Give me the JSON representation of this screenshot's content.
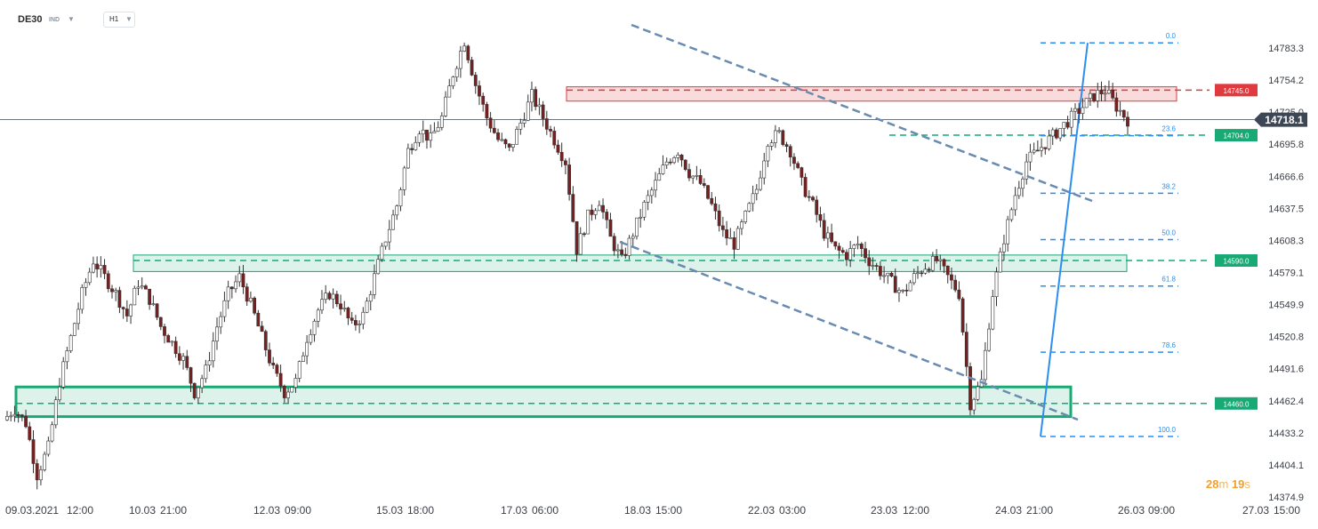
{
  "header": {
    "symbol": "DE30",
    "symbol_type": "IND",
    "timeframe": "H1"
  },
  "timer": {
    "minutes": "28",
    "m_unit": "m",
    "seconds": "19",
    "s_unit": "s"
  },
  "colors": {
    "up": "#ffffff",
    "down": "#7a1f1f",
    "wick": "#333333",
    "resistance": "#e0393e",
    "support": "#19a974",
    "fib": "#2b8ef0",
    "channel": "#6a8bb0",
    "current_price": "#3d4654"
  },
  "chart_data": {
    "type": "candlestick",
    "instrument": "DE30",
    "interval": "H1",
    "x_tick_labels": [
      "09.03.2021",
      "12:00",
      "10.03",
      "21:00",
      "12.03",
      "09:00",
      "15.03",
      "18:00",
      "17.03",
      "06:00",
      "18.03",
      "15:00",
      "22.03",
      "03:00",
      "23.03",
      "12:00",
      "24.03",
      "21:00",
      "26.03",
      "09:00",
      "27.03",
      "15:00"
    ],
    "y_ticks": [
      14783.3,
      14754.2,
      14725.0,
      14695.8,
      14666.6,
      14637.5,
      14608.3,
      14579.1,
      14549.9,
      14520.8,
      14491.6,
      14462.4,
      14433.2,
      14404.1,
      14374.9
    ],
    "y_tick_labels": [
      "14783.3",
      "14754.2",
      "14725.0",
      "14695.8",
      "14666.6",
      "14637.5",
      "14608.3",
      "14579.1",
      "14549.9",
      "14520.8",
      "14491.6",
      "14462.4",
      "14433.2",
      "14404.1",
      "14374.9"
    ],
    "ylim": [
      14365,
      14812
    ],
    "current_price": {
      "value": 14718.1,
      "label": "14718.1"
    },
    "levels": [
      {
        "value": 14745.0,
        "label": "14745.0",
        "kind": "resistance"
      },
      {
        "value": 14704.0,
        "label": "14704.0",
        "kind": "support"
      },
      {
        "value": 14590.0,
        "label": "14590.0",
        "kind": "support"
      },
      {
        "value": 14460.0,
        "label": "14460.0",
        "kind": "support"
      }
    ],
    "zones": [
      {
        "low": 14735,
        "high": 14748,
        "kind": "resistance"
      },
      {
        "low": 14580,
        "high": 14595,
        "kind": "support"
      },
      {
        "low": 14448,
        "high": 14475,
        "kind": "support"
      }
    ],
    "fibonacci": {
      "swing_low": 14430.0,
      "swing_high": 14788.0,
      "levels": [
        {
          "ratio": 0.0,
          "label": "0.0",
          "price": 14788.0
        },
        {
          "ratio": 0.236,
          "label": "23.6",
          "price": 14703.5
        },
        {
          "ratio": 0.382,
          "label": "38.2",
          "price": 14651.2
        },
        {
          "ratio": 0.5,
          "label": "50.0",
          "price": 14609.0
        },
        {
          "ratio": 0.618,
          "label": "61.8",
          "price": 14566.8
        },
        {
          "ratio": 0.786,
          "label": "78.6",
          "price": 14506.6
        },
        {
          "ratio": 1.0,
          "label": "100.0",
          "price": 14430.0
        }
      ]
    },
    "candles_summary": {
      "open": 14450,
      "high": 14806,
      "low": 14378,
      "last": 14718.1,
      "path_prices": [
        14445,
        14455,
        14442,
        14395,
        14420,
        14480,
        14520,
        14560,
        14590,
        14575,
        14560,
        14540,
        14570,
        14555,
        14530,
        14515,
        14500,
        14470,
        14490,
        14530,
        14560,
        14575,
        14550,
        14520,
        14490,
        14470,
        14480,
        14520,
        14545,
        14560,
        14550,
        14530,
        14540,
        14575,
        14610,
        14640,
        14690,
        14710,
        14700,
        14720,
        14760,
        14790,
        14750,
        14720,
        14700,
        14690,
        14715,
        14740,
        14720,
        14700,
        14680,
        14600,
        14630,
        14645,
        14610,
        14590,
        14615,
        14640,
        14660,
        14680,
        14690,
        14670,
        14660,
        14640,
        14615,
        14605,
        14630,
        14655,
        14700,
        14705,
        14690,
        14660,
        14640,
        14615,
        14600,
        14595,
        14605,
        14590,
        14580,
        14570,
        14560,
        14575,
        14585,
        14590,
        14575,
        14560,
        14460,
        14480,
        14560,
        14610,
        14650,
        14680,
        14690,
        14700,
        14710,
        14720,
        14730,
        14740,
        14745,
        14730,
        14718
      ]
    }
  }
}
